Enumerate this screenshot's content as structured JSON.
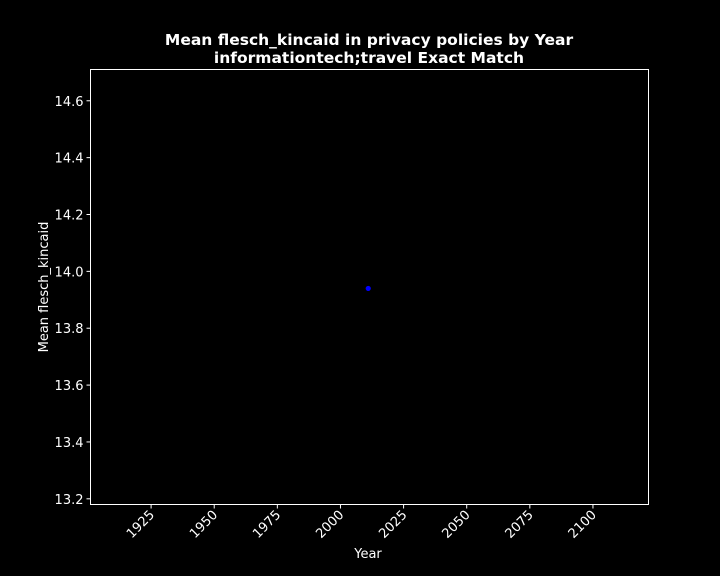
{
  "colors": {
    "background": "#000000",
    "foreground": "#ffffff",
    "point": "#0000ff"
  },
  "chart_data": {
    "type": "scatter",
    "title": "Mean flesch_kincaid in privacy policies by Year",
    "subtitle": "informationtech;travel Exact Match",
    "xlabel": "Year",
    "ylabel": "Mean flesch_kincaid",
    "xlim": [
      1901,
      2122
    ],
    "ylim": [
      13.18,
      14.71
    ],
    "xticks": [
      1925,
      1950,
      1975,
      2000,
      2025,
      2050,
      2075,
      2100
    ],
    "xtick_labels": [
      "1925",
      "1950",
      "1975",
      "2000",
      "2025",
      "2050",
      "2075",
      "2100"
    ],
    "yticks": [
      13.2,
      13.4,
      13.6,
      13.8,
      14.0,
      14.2,
      14.4,
      14.6
    ],
    "ytick_labels": [
      "13.2",
      "13.4",
      "13.6",
      "13.8",
      "14.0",
      "14.2",
      "14.4",
      "14.6"
    ],
    "grid": false,
    "series": [
      {
        "points": [
          {
            "x": 2011,
            "y": 13.94
          }
        ]
      }
    ]
  }
}
